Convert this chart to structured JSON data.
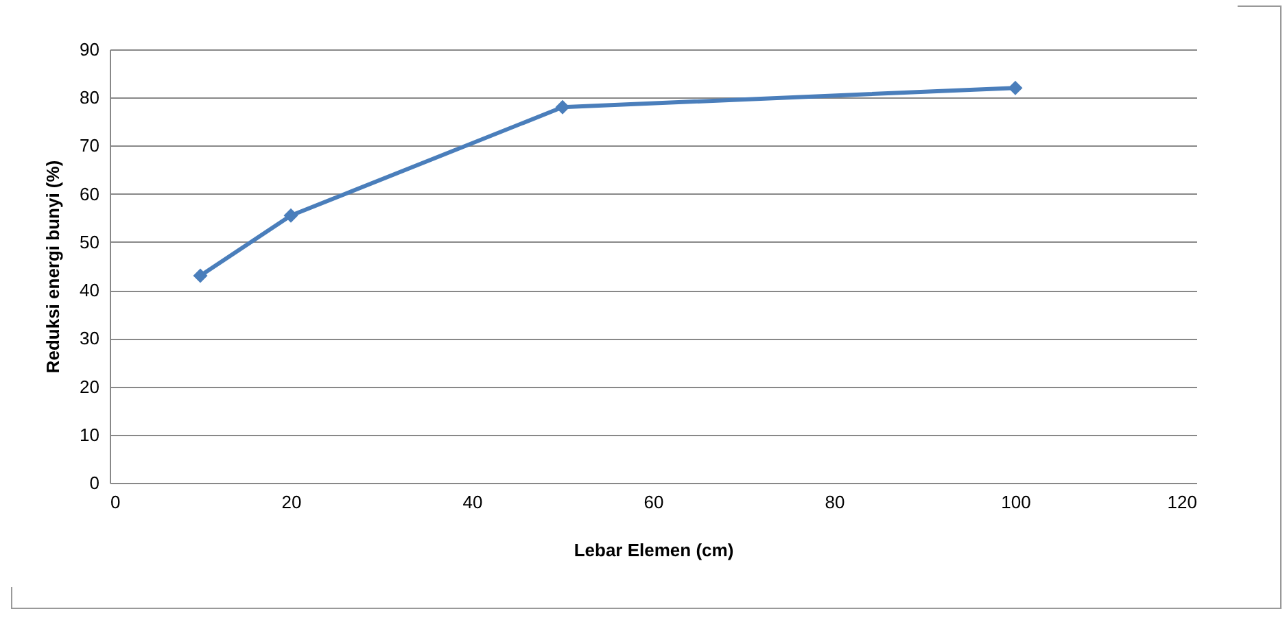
{
  "chart_data": {
    "type": "line",
    "xlabel": "Lebar Elemen (cm)",
    "ylabel": "Reduksi energi bunyi (%)",
    "x": [
      10,
      20,
      50,
      100
    ],
    "series": [
      {
        "color": "#4a7ebb",
        "values": [
          43,
          55.5,
          78,
          82
        ]
      }
    ],
    "xlim": [
      0,
      120
    ],
    "xticks": [
      0,
      20,
      40,
      60,
      80,
      100,
      120
    ],
    "ylim": [
      0,
      90
    ],
    "yticks": [
      0,
      10,
      20,
      30,
      40,
      50,
      60,
      70,
      80,
      90
    ],
    "grid": "y",
    "marker": "diamond",
    "line_style": "solid"
  }
}
